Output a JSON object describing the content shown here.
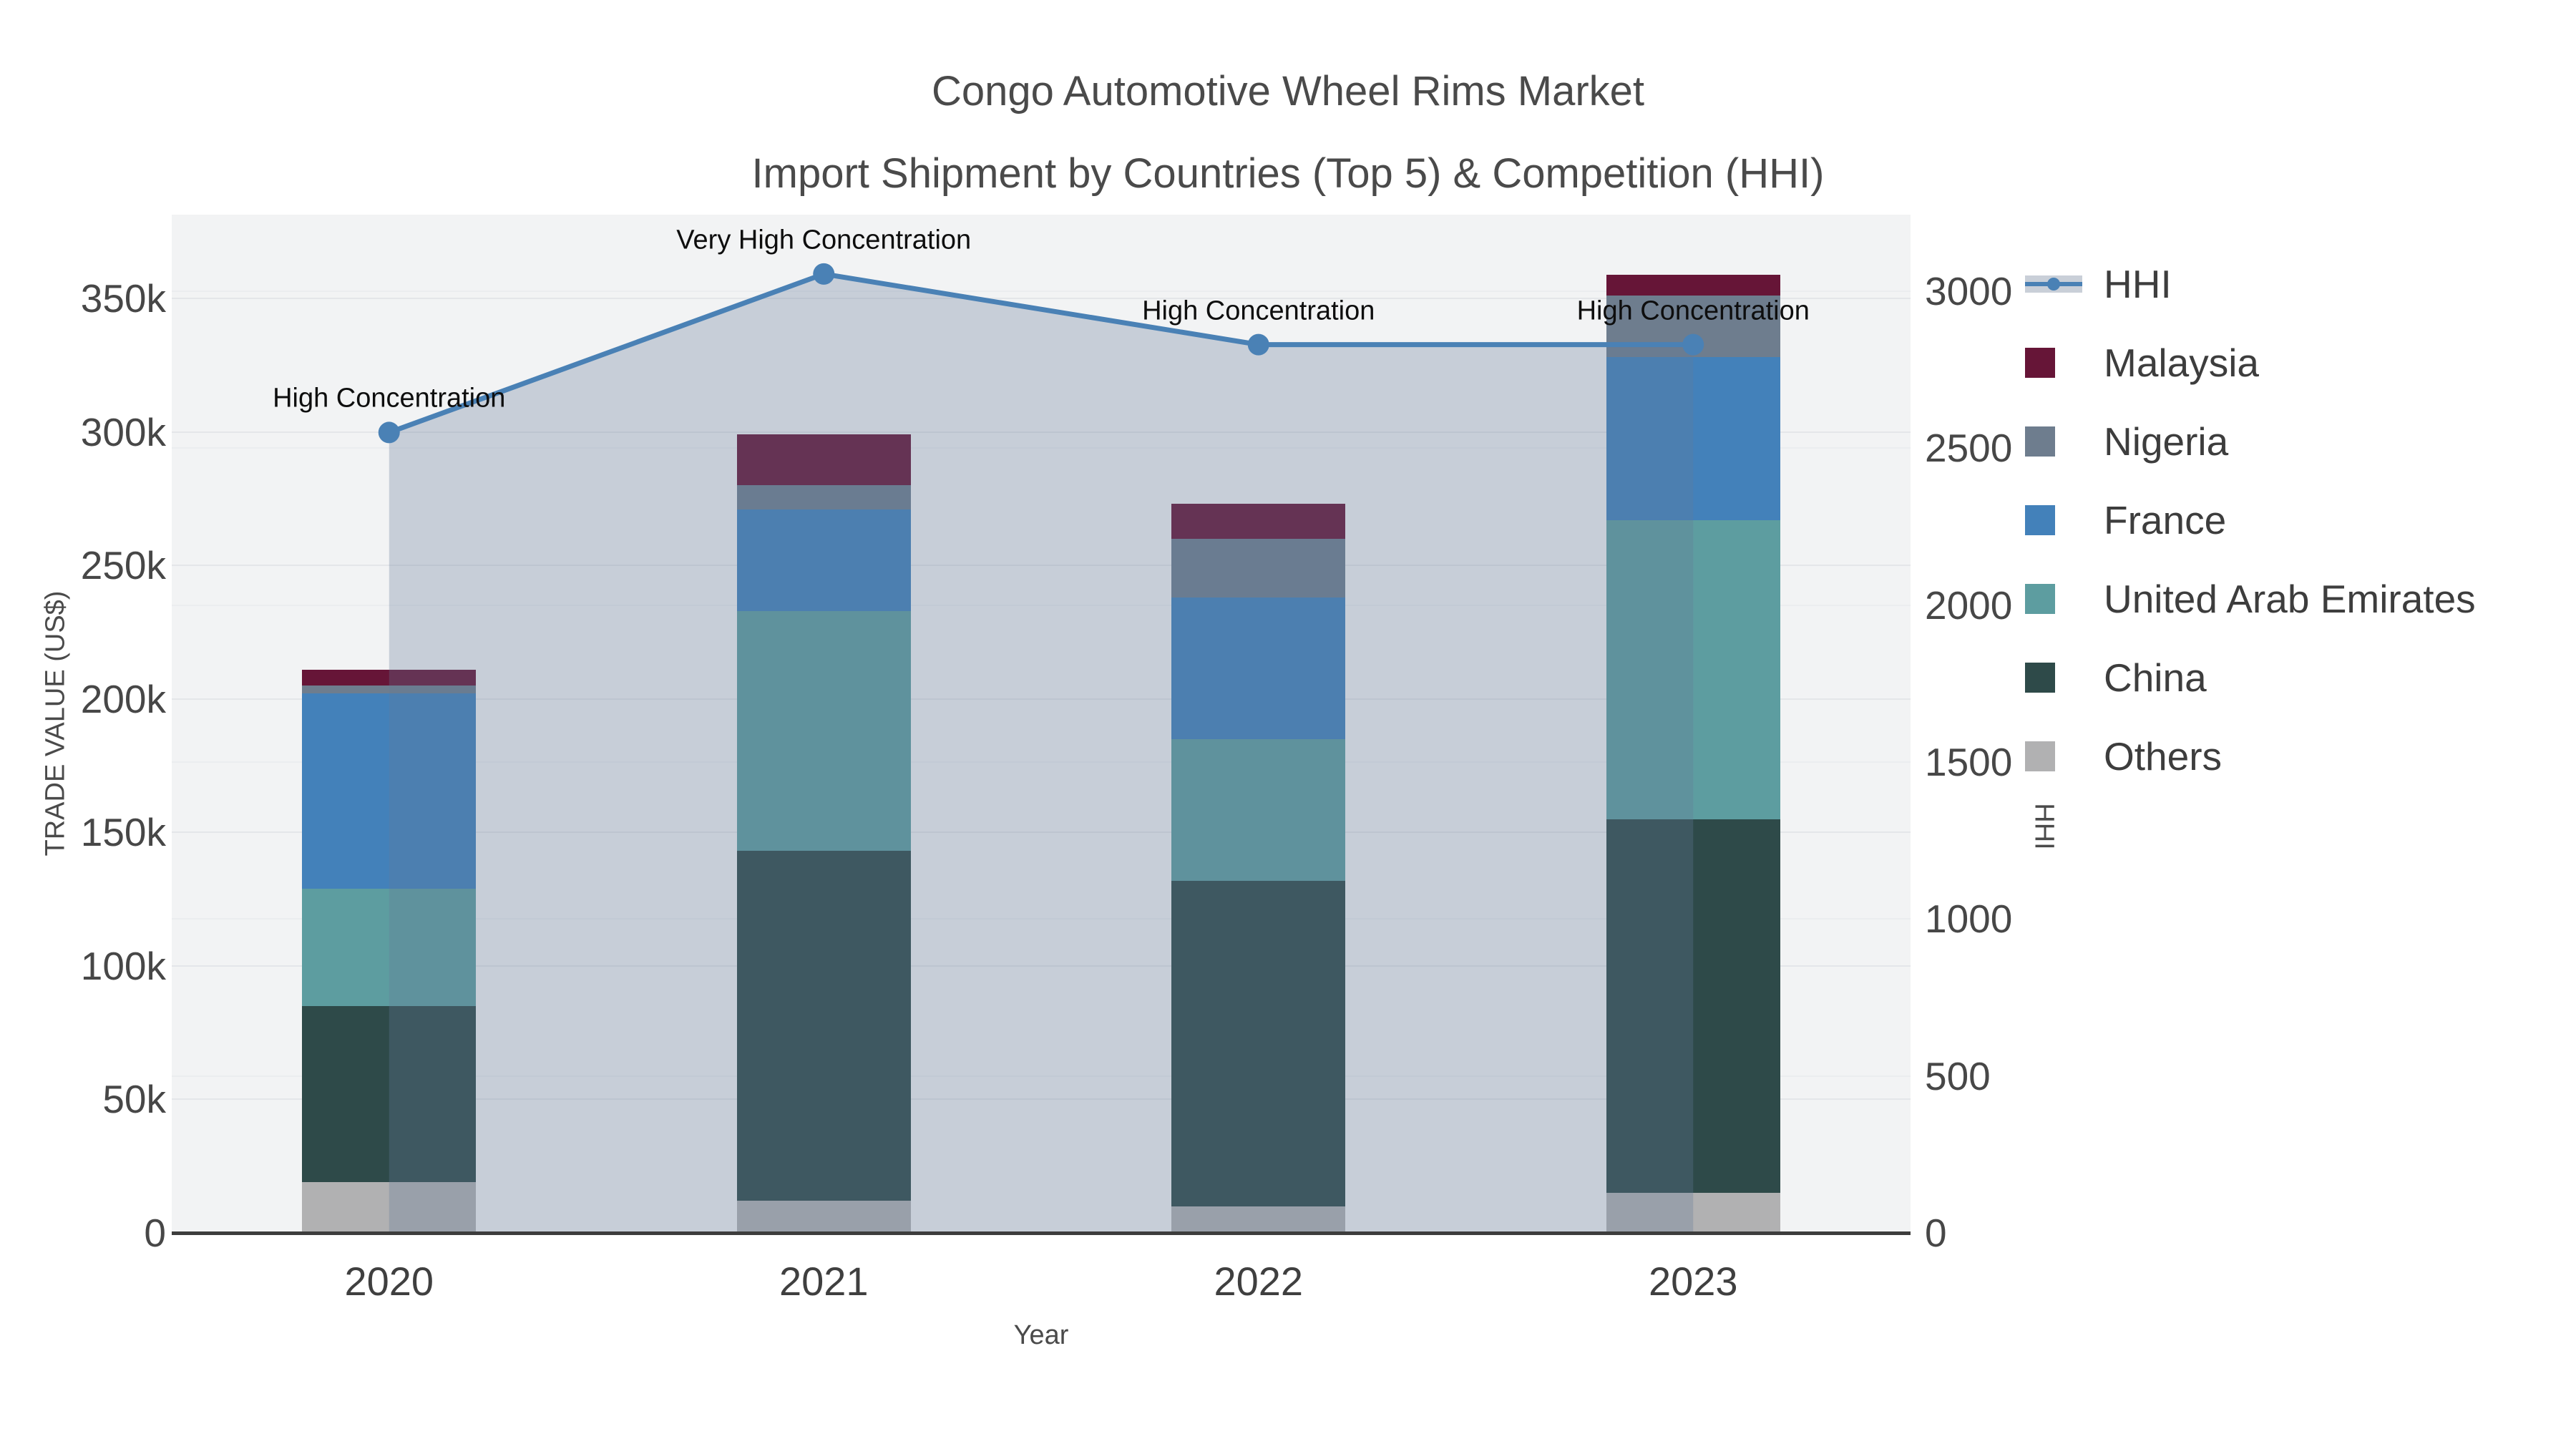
{
  "title": {
    "line1": "Congo Automotive Wheel Rims Market",
    "line2": "Import Shipment by Countries (Top 5) & Competition (HHI)"
  },
  "axes": {
    "x": {
      "title": "Year",
      "tick_labels": [
        "2020",
        "2021",
        "2022",
        "2023"
      ]
    },
    "y_left": {
      "title": "TRADE VALUE (US$)",
      "tick_labels": [
        "0",
        "50k",
        "100k",
        "150k",
        "200k",
        "250k",
        "300k",
        "350k"
      ],
      "tick_values": [
        0,
        50000,
        100000,
        150000,
        200000,
        250000,
        300000,
        350000
      ]
    },
    "y_right": {
      "title": "HHI",
      "tick_labels": [
        "0",
        "500",
        "1000",
        "1500",
        "2000",
        "2500",
        "3000"
      ],
      "tick_values": [
        0,
        500,
        1000,
        1500,
        2000,
        2500,
        3000
      ]
    }
  },
  "legend": {
    "position": "right",
    "items": [
      {
        "label": "HHI",
        "type": "line",
        "color": "#4a81b5"
      },
      {
        "label": "Malaysia",
        "type": "swatch",
        "color": "#661537"
      },
      {
        "label": "Nigeria",
        "type": "swatch",
        "color": "#6e7d8e"
      },
      {
        "label": "France",
        "type": "swatch",
        "color": "#4381ba"
      },
      {
        "label": "United Arab Emirates",
        "type": "swatch",
        "color": "#5d9da0"
      },
      {
        "label": "China",
        "type": "swatch",
        "color": "#2e4a49"
      },
      {
        "label": "Others",
        "type": "swatch",
        "color": "#b1b1b2"
      }
    ]
  },
  "chart_data": {
    "type": "bar",
    "subtype": "stacked-bars-with-line-overlay",
    "title": "Congo Automotive Wheel Rims Market Import Shipment by Countries (Top 5) & Competition (HHI)",
    "xlabel": "Year",
    "ylabel": "TRADE VALUE (US$)",
    "ylabel_right": "HHI",
    "categories": [
      "2020",
      "2021",
      "2022",
      "2023"
    ],
    "stack_order_bottom_to_top": [
      "Others",
      "China",
      "United Arab Emirates",
      "France",
      "Nigeria",
      "Malaysia"
    ],
    "series": [
      {
        "name": "Malaysia",
        "color": "#661537",
        "values": [
          6000,
          19000,
          13000,
          8000
        ]
      },
      {
        "name": "Nigeria",
        "color": "#6e7d8e",
        "values": [
          3000,
          9000,
          22000,
          23000
        ]
      },
      {
        "name": "France",
        "color": "#4381ba",
        "values": [
          73000,
          38000,
          53000,
          61000
        ]
      },
      {
        "name": "United Arab Emirates",
        "color": "#5d9da0",
        "values": [
          44000,
          90000,
          53000,
          112000
        ]
      },
      {
        "name": "China",
        "color": "#2e4a49",
        "values": [
          66000,
          131000,
          122000,
          140000
        ]
      },
      {
        "name": "Others",
        "color": "#b1b1b2",
        "values": [
          19000,
          12000,
          10000,
          15000
        ]
      }
    ],
    "bar_totals": [
      211000,
      299000,
      273000,
      359000
    ],
    "line_series": {
      "name": "HHI",
      "axis": "right",
      "color": "#4a81b5",
      "fill_color": "rgba(100,124,152,0.30)",
      "values": [
        2550,
        3055,
        2830,
        2830
      ]
    },
    "annotations": [
      {
        "category": "2020",
        "text": "High Concentration"
      },
      {
        "category": "2021",
        "text": "Very High Concentration"
      },
      {
        "category": "2022",
        "text": "High Concentration"
      },
      {
        "category": "2023",
        "text": "High Concentration"
      }
    ],
    "ylim_left": [
      0,
      381400
    ],
    "ylim_right": [
      0,
      3244
    ],
    "grid": true,
    "legend_position": "right",
    "plot_background": "#f2f3f4"
  }
}
